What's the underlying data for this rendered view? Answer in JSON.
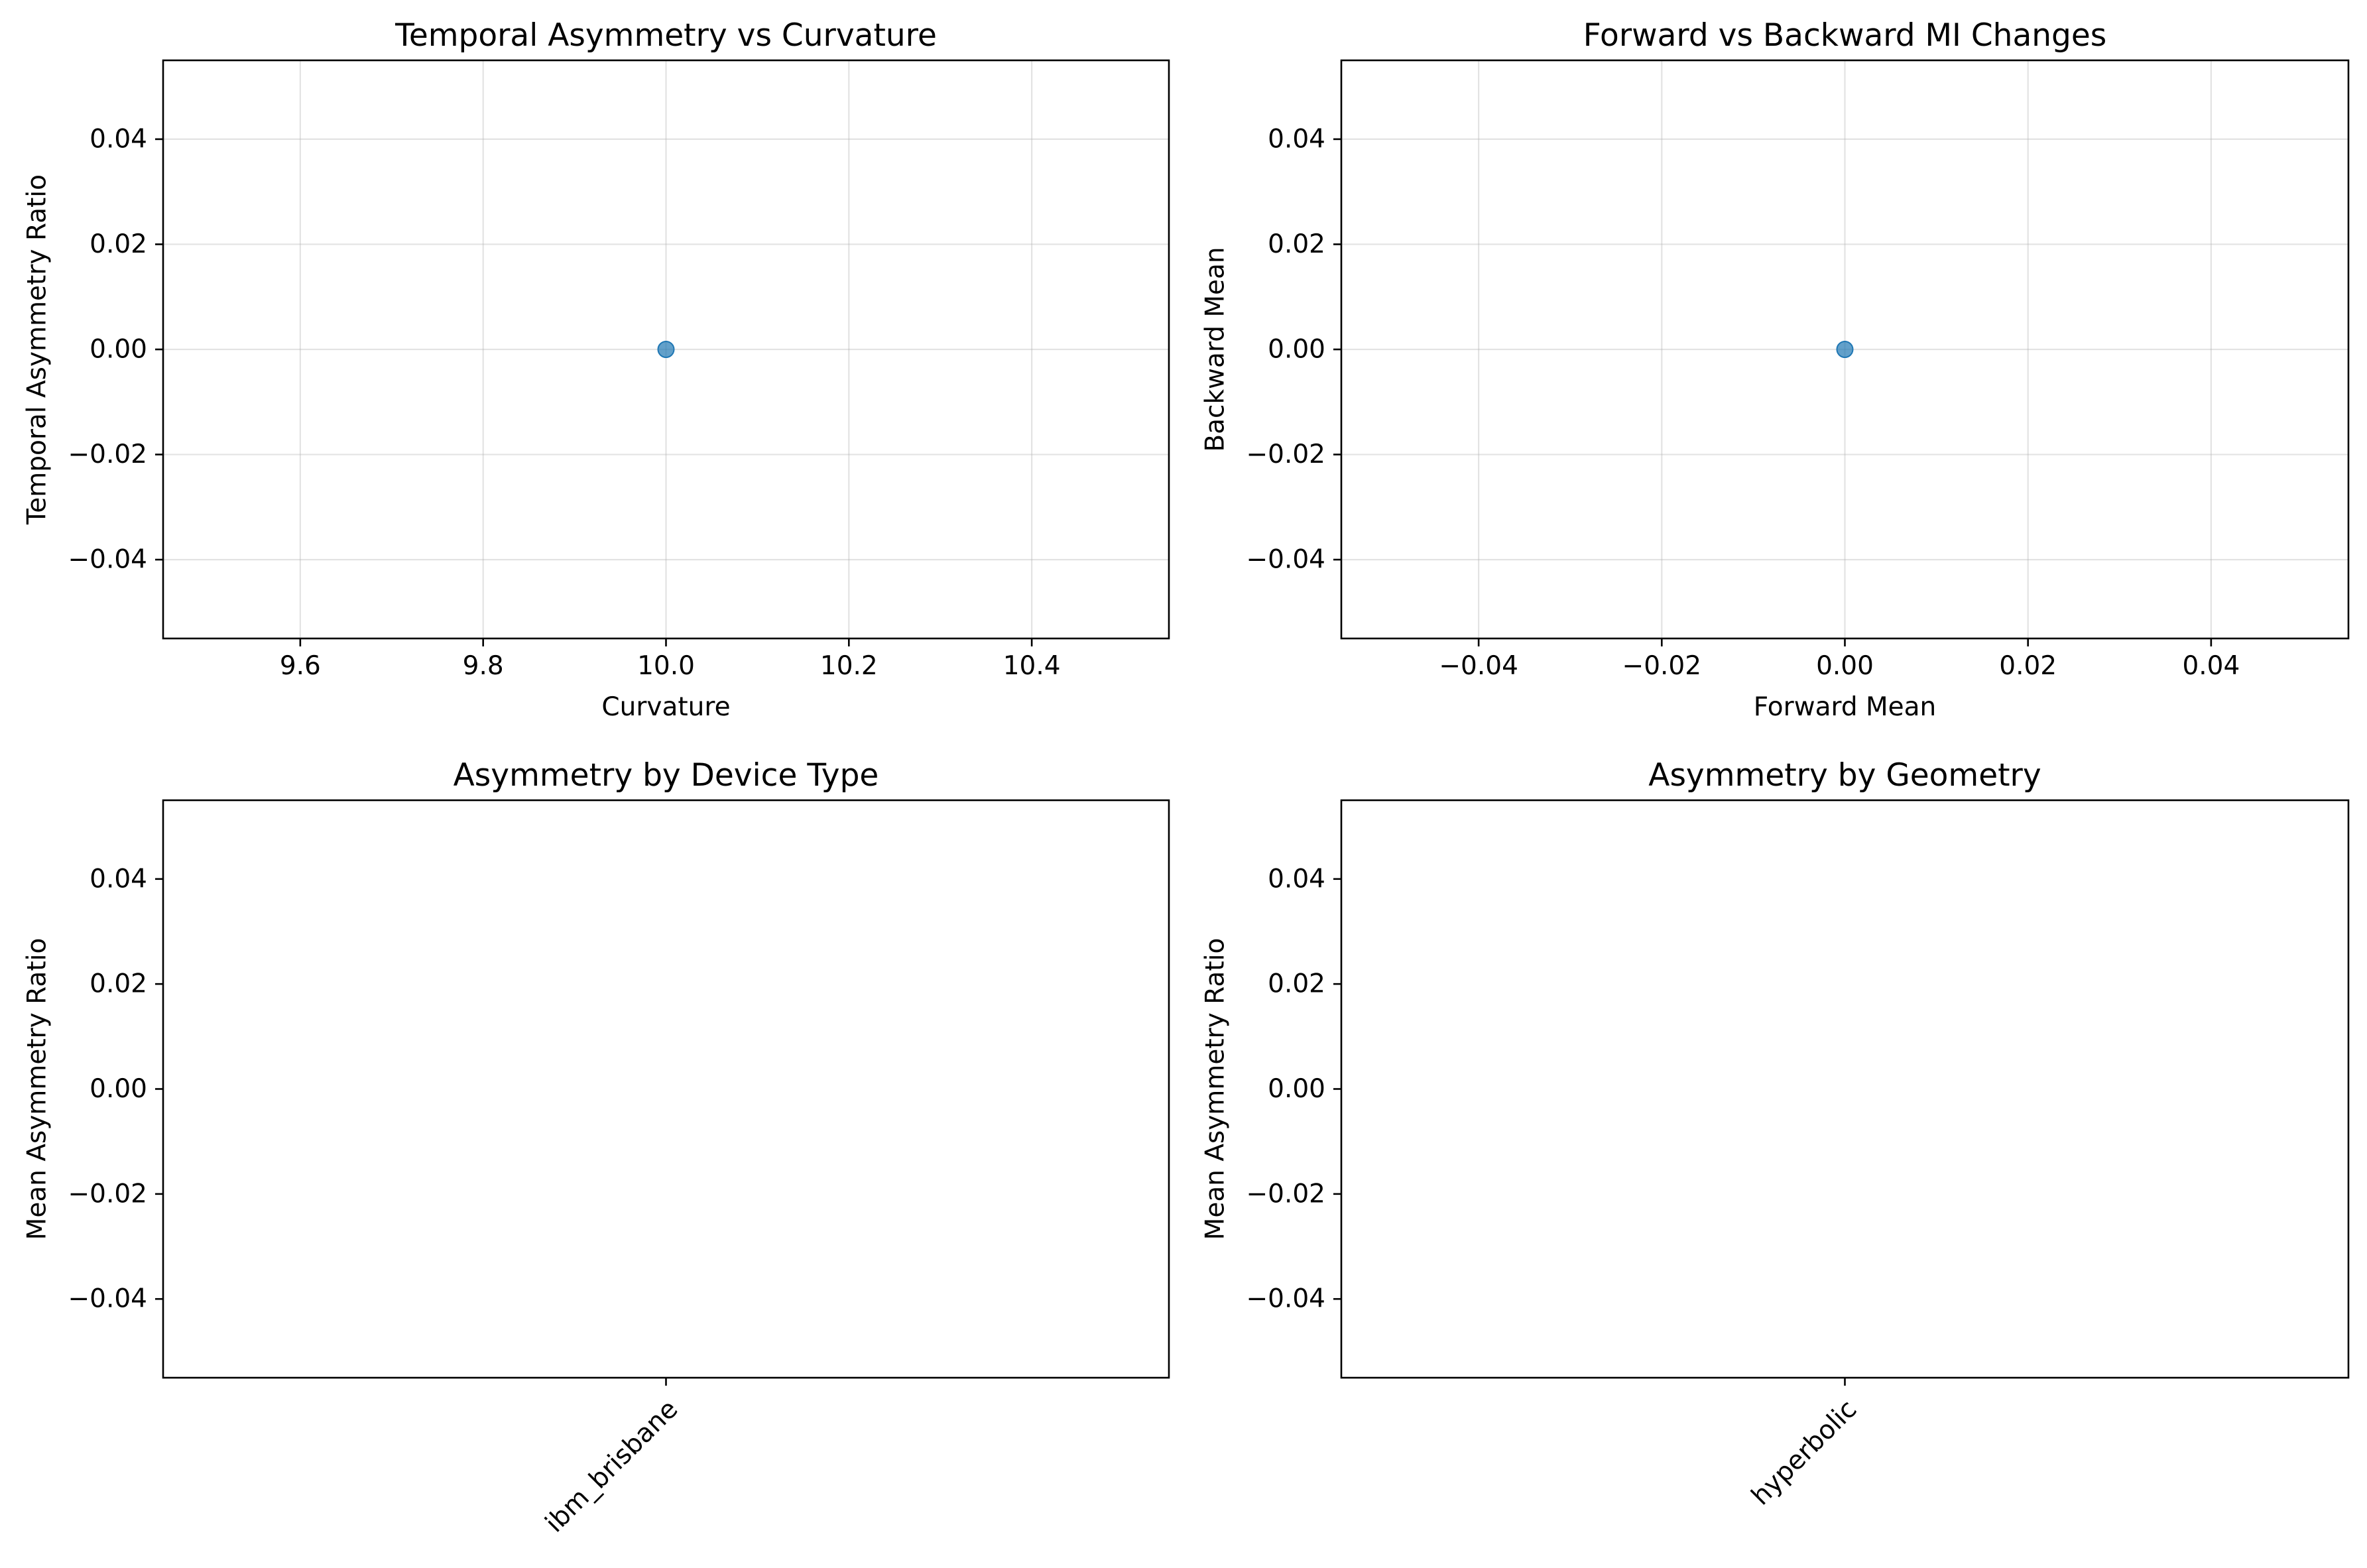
{
  "colors": {
    "point": "#1f77b4",
    "grid": "#b0b0b0",
    "frame": "#000000"
  },
  "chart_data": [
    {
      "type": "scatter",
      "title": "Temporal Asymmetry vs Curvature",
      "xlabel": "Curvature",
      "ylabel": "Temporal Asymmetry Ratio",
      "xlim": [
        9.45,
        10.55
      ],
      "ylim": [
        -0.055,
        0.055
      ],
      "xticks": [
        9.6,
        9.8,
        10.0,
        10.2,
        10.4
      ],
      "xtick_labels": [
        "9.6",
        "9.8",
        "10.0",
        "10.2",
        "10.4"
      ],
      "yticks": [
        0.04,
        0.02,
        0.0,
        -0.02,
        -0.04
      ],
      "ytick_labels": [
        "0.04",
        "0.02",
        "0.00",
        "−0.02",
        "−0.04"
      ],
      "grid": true,
      "points": [
        {
          "x": 10.0,
          "y": 0.0
        }
      ]
    },
    {
      "type": "scatter",
      "title": "Forward vs Backward MI Changes",
      "xlabel": "Forward Mean",
      "ylabel": "Backward Mean",
      "xlim": [
        -0.055,
        0.055
      ],
      "ylim": [
        -0.055,
        0.055
      ],
      "xticks": [
        -0.04,
        -0.02,
        0.0,
        0.02,
        0.04
      ],
      "xtick_labels": [
        "−0.04",
        "−0.02",
        "0.00",
        "0.02",
        "0.04"
      ],
      "yticks": [
        0.04,
        0.02,
        0.0,
        -0.02,
        -0.04
      ],
      "ytick_labels": [
        "0.04",
        "0.02",
        "0.00",
        "−0.02",
        "−0.04"
      ],
      "grid": true,
      "points": [
        {
          "x": 0.0,
          "y": 0.0
        }
      ]
    },
    {
      "type": "bar",
      "title": "Asymmetry by Device Type",
      "xlabel": "",
      "ylabel": "Mean Asymmetry Ratio",
      "ylim": [
        -0.055,
        0.055
      ],
      "categories": [
        "ibm_brisbane"
      ],
      "values": [
        0.0
      ],
      "yticks": [
        0.04,
        0.02,
        0.0,
        -0.02,
        -0.04
      ],
      "ytick_labels": [
        "0.04",
        "0.02",
        "0.00",
        "−0.02",
        "−0.04"
      ],
      "grid": false
    },
    {
      "type": "bar",
      "title": "Asymmetry by Geometry",
      "xlabel": "",
      "ylabel": "Mean Asymmetry Ratio",
      "ylim": [
        -0.055,
        0.055
      ],
      "categories": [
        "hyperbolic"
      ],
      "values": [
        0.0
      ],
      "yticks": [
        0.04,
        0.02,
        0.0,
        -0.02,
        -0.04
      ],
      "ytick_labels": [
        "0.04",
        "0.02",
        "0.00",
        "−0.02",
        "−0.04"
      ],
      "grid": false
    }
  ]
}
